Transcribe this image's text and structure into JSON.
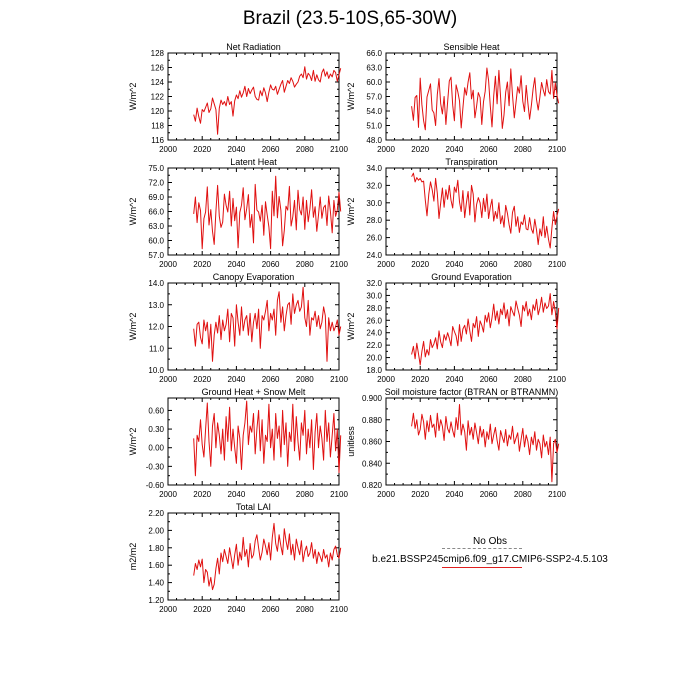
{
  "figure": {
    "title": "Brazil (23.5-10S,65-30W)",
    "line_color": "#e01010",
    "legend": {
      "obs_label": "No Obs",
      "case_label": "b.e21.BSSP245cmip6.f09_g17.CMIP6-SSP2-4.5.103",
      "obs_color": "#8a8a8a",
      "case_color": "#e02020"
    }
  },
  "chart_data": [
    {
      "type": "line",
      "title": "Net Radiation",
      "xlabel": "",
      "ylabel": "W/m^2",
      "xlim": [
        2000,
        2100
      ],
      "ylim": [
        116,
        128
      ],
      "x_ticks": [
        2000,
        2020,
        2040,
        2060,
        2080,
        2100
      ],
      "x_tick_labels": [
        "2000",
        "2020",
        "2040",
        "2060",
        "2080",
        "2100"
      ],
      "y_ticks": [
        116,
        118,
        120,
        122,
        124,
        126,
        128
      ],
      "y_tick_labels": [
        "116",
        "118",
        "120",
        "122",
        "124",
        "126",
        "128"
      ],
      "x_start": 2015,
      "values": [
        119.5,
        118.6,
        120.4,
        119.2,
        118.3,
        120.2,
        119.9,
        120.5,
        121.1,
        119.8,
        120.3,
        121.8,
        121.0,
        120.2,
        116.8,
        120.4,
        121.5,
        120.9,
        121.3,
        120.7,
        122.0,
        120.9,
        121.3,
        119.3,
        121.4,
        122.2,
        121.7,
        122.8,
        121.9,
        122.5,
        123.4,
        122.0,
        123.1,
        122.4,
        122.9,
        123.3,
        122.0,
        121.6,
        121.5,
        122.8,
        122.1,
        123.2,
        122.5,
        121.3,
        122.6,
        123.6,
        123.0,
        122.9,
        123.4,
        122.3,
        123.0,
        123.7,
        124.2,
        122.6,
        123.4,
        124.2,
        123.8,
        124.6,
        124.1,
        123.3,
        123.7,
        124.0,
        124.8,
        125.1,
        124.6,
        126.1,
        124.4,
        125.2,
        124.9,
        124.2,
        125.6,
        124.1,
        125.0,
        124.3,
        124.0,
        125.3,
        125.8,
        124.8,
        125.4,
        124.5,
        125.1,
        124.7,
        125.6,
        125.3,
        124.1,
        125.0,
        125.9
      ]
    },
    {
      "type": "line",
      "title": "Sensible Heat",
      "xlabel": "",
      "ylabel": "W/m^2",
      "xlim": [
        2000,
        2100
      ],
      "ylim": [
        48,
        66
      ],
      "x_ticks": [
        2000,
        2020,
        2040,
        2060,
        2080,
        2100
      ],
      "x_tick_labels": [
        "2000",
        "2020",
        "2040",
        "2060",
        "2080",
        "2100"
      ],
      "y_ticks": [
        48,
        51,
        54,
        57,
        60,
        63,
        66
      ],
      "y_tick_labels": [
        "48.0",
        "51.0",
        "54.0",
        "57.0",
        "60.0",
        "63.0",
        "66.0"
      ],
      "x_start": 2015,
      "values": [
        55.0,
        52.1,
        56.8,
        57.2,
        50.6,
        60.8,
        55.3,
        52.0,
        50.1,
        56.9,
        58.3,
        59.6,
        54.2,
        53.6,
        51.0,
        57.4,
        60.7,
        55.5,
        53.4,
        57.0,
        51.2,
        55.8,
        60.2,
        61.0,
        55.2,
        52.0,
        59.4,
        58.0,
        56.1,
        50.5,
        54.6,
        58.8,
        57.3,
        60.0,
        61.9,
        56.5,
        58.3,
        52.6,
        55.0,
        57.8,
        56.8,
        51.2,
        55.9,
        58.1,
        62.9,
        60.3,
        55.0,
        50.7,
        57.1,
        61.2,
        55.5,
        62.4,
        56.8,
        50.4,
        53.2,
        57.9,
        60.0,
        55.1,
        62.7,
        57.3,
        52.6,
        55.8,
        59.0,
        57.7,
        61.3,
        56.0,
        53.9,
        59.3,
        55.6,
        52.3,
        55.2,
        58.6,
        60.9,
        56.4,
        54.2,
        56.9,
        59.9,
        58.3,
        57.1,
        60.5,
        58.0,
        57.5,
        62.4,
        56.6,
        59.8,
        57.2,
        55.6
      ]
    },
    {
      "type": "line",
      "title": "Latent Heat",
      "xlabel": "",
      "ylabel": "W/m^2",
      "xlim": [
        2000,
        2100
      ],
      "ylim": [
        57,
        75
      ],
      "x_ticks": [
        2000,
        2020,
        2040,
        2060,
        2080,
        2100
      ],
      "x_tick_labels": [
        "2000",
        "2020",
        "2040",
        "2060",
        "2080",
        "2100"
      ],
      "y_ticks": [
        57,
        60,
        63,
        66,
        69,
        72,
        75
      ],
      "y_tick_labels": [
        "57.0",
        "60.0",
        "63.0",
        "66.0",
        "69.0",
        "72.0",
        "75.0"
      ],
      "x_start": 2015,
      "values": [
        65.5,
        69.0,
        63.7,
        67.8,
        66.2,
        58.3,
        64.5,
        65.9,
        71.1,
        63.2,
        66.4,
        61.9,
        59.2,
        66.0,
        71.4,
        65.0,
        62.7,
        63.8,
        69.6,
        67.3,
        65.9,
        70.2,
        63.0,
        68.7,
        64.1,
        66.9,
        58.5,
        65.8,
        67.3,
        70.9,
        64.3,
        66.6,
        69.5,
        62.7,
        65.4,
        59.5,
        71.6,
        66.3,
        65.9,
        64.0,
        67.3,
        61.1,
        68.0,
        65.3,
        62.8,
        58.3,
        70.2,
        65.1,
        73.3,
        64.7,
        69.1,
        66.2,
        58.9,
        62.1,
        67.1,
        66.3,
        71.2,
        63.0,
        64.9,
        68.3,
        62.2,
        70.4,
        66.4,
        65.3,
        69.0,
        62.3,
        68.3,
        63.9,
        66.5,
        70.5,
        64.8,
        67.0,
        61.9,
        65.3,
        69.0,
        64.6,
        66.8,
        67.3,
        63.1,
        69.2,
        66.0,
        61.6,
        68.3,
        65.0,
        66.3,
        70.0,
        66.0
      ]
    },
    {
      "type": "line",
      "title": "Transpiration",
      "xlabel": "",
      "ylabel": "W/m^2",
      "xlim": [
        2000,
        2100
      ],
      "ylim": [
        24,
        34
      ],
      "x_ticks": [
        2000,
        2020,
        2040,
        2060,
        2080,
        2100
      ],
      "x_tick_labels": [
        "2000",
        "2020",
        "2040",
        "2060",
        "2080",
        "2100"
      ],
      "y_ticks": [
        24,
        26,
        28,
        30,
        32,
        34
      ],
      "y_tick_labels": [
        "24.0",
        "26.0",
        "28.0",
        "30.0",
        "32.0",
        "34.0"
      ],
      "x_start": 2015,
      "values": [
        33.0,
        33.4,
        32.4,
        32.9,
        32.6,
        32.8,
        32.4,
        32.5,
        30.3,
        28.5,
        31.0,
        32.4,
        31.5,
        30.2,
        32.8,
        31.1,
        28.2,
        30.0,
        31.7,
        29.5,
        31.5,
        30.4,
        32.0,
        30.3,
        29.4,
        31.8,
        31.2,
        32.6,
        30.1,
        29.0,
        31.4,
        28.3,
        30.0,
        31.3,
        28.6,
        32.0,
        31.0,
        27.8,
        29.8,
        30.6,
        30.0,
        28.3,
        30.5,
        29.0,
        31.0,
        28.2,
        29.5,
        30.4,
        27.9,
        29.0,
        28.2,
        30.0,
        27.6,
        28.5,
        27.2,
        29.7,
        28.8,
        27.5,
        26.5,
        28.9,
        29.6,
        27.3,
        28.4,
        26.6,
        27.8,
        27.5,
        28.6,
        27.0,
        26.9,
        28.3,
        27.0,
        26.5,
        28.1,
        26.9,
        25.2,
        27.0,
        26.2,
        28.4,
        26.0,
        27.3,
        25.8,
        24.8,
        27.1,
        29.0,
        27.5,
        28.5,
        29.3
      ]
    },
    {
      "type": "line",
      "title": "Canopy Evaporation",
      "xlabel": "",
      "ylabel": "W/m^2",
      "xlim": [
        2000,
        2100
      ],
      "ylim": [
        10,
        14
      ],
      "x_ticks": [
        2000,
        2020,
        2040,
        2060,
        2080,
        2100
      ],
      "x_tick_labels": [
        "2000",
        "2020",
        "2040",
        "2060",
        "2080",
        "2100"
      ],
      "y_ticks": [
        10,
        11,
        12,
        13,
        14
      ],
      "y_tick_labels": [
        "10.0",
        "11.0",
        "12.0",
        "13.0",
        "14.0"
      ],
      "x_start": 2015,
      "values": [
        11.9,
        11.1,
        12.1,
        12.2,
        11.5,
        11.2,
        12.3,
        11.8,
        12.2,
        11.0,
        12.1,
        10.4,
        11.6,
        12.2,
        11.7,
        12.5,
        11.4,
        12.3,
        11.8,
        12.1,
        12.8,
        11.3,
        12.6,
        12.4,
        11.1,
        13.0,
        12.2,
        11.6,
        12.9,
        11.8,
        12.3,
        12.5,
        11.6,
        12.6,
        11.3,
        12.2,
        12.6,
        11.9,
        12.8,
        11.0,
        12.5,
        12.3,
        12.7,
        13.2,
        11.8,
        12.6,
        12.3,
        12.8,
        11.6,
        13.2,
        13.6,
        12.2,
        12.9,
        11.8,
        12.5,
        13.0,
        13.1,
        12.1,
        13.5,
        12.6,
        13.0,
        13.2,
        12.7,
        12.9,
        13.8,
        12.4,
        12.0,
        13.2,
        11.6,
        12.4,
        12.3,
        12.7,
        12.0,
        12.5,
        11.9,
        12.2,
        12.9,
        12.5,
        10.4,
        12.4,
        11.8,
        12.2,
        11.8,
        12.0,
        12.3,
        11.6,
        12.0
      ]
    },
    {
      "type": "line",
      "title": "Ground Evaporation",
      "xlabel": "",
      "ylabel": "W/m^2",
      "xlim": [
        2000,
        2100
      ],
      "ylim": [
        18,
        32
      ],
      "x_ticks": [
        2000,
        2020,
        2040,
        2060,
        2080,
        2100
      ],
      "x_tick_labels": [
        "2000",
        "2020",
        "2040",
        "2060",
        "2080",
        "2100"
      ],
      "y_ticks": [
        18,
        20,
        22,
        24,
        26,
        28,
        30,
        32
      ],
      "y_tick_labels": [
        "18.0",
        "20.0",
        "22.0",
        "24.0",
        "26.0",
        "28.0",
        "30.0",
        "32.0"
      ],
      "x_start": 2015,
      "values": [
        20.5,
        21.8,
        19.8,
        22.3,
        20.6,
        18.8,
        21.0,
        22.6,
        20.1,
        21.3,
        20.4,
        22.9,
        21.6,
        22.2,
        23.2,
        21.4,
        24.3,
        22.5,
        21.6,
        23.7,
        22.8,
        24.0,
        23.1,
        21.9,
        25.0,
        24.2,
        23.5,
        21.9,
        25.3,
        22.6,
        24.6,
        25.2,
        23.8,
        26.2,
        24.3,
        22.6,
        25.5,
        24.8,
        26.6,
        23.4,
        25.9,
        25.2,
        24.1,
        26.8,
        25.7,
        27.2,
        24.8,
        26.4,
        28.6,
        26.0,
        27.5,
        25.4,
        27.8,
        26.9,
        28.8,
        26.3,
        27.7,
        25.1,
        28.2,
        27.4,
        26.7,
        29.1,
        27.9,
        26.8,
        25.0,
        28.4,
        27.5,
        29.0,
        26.7,
        27.8,
        26.1,
        28.5,
        27.6,
        29.4,
        26.9,
        28.0,
        29.7,
        27.3,
        28.8,
        27.9,
        28.3,
        30.3,
        26.9,
        29.0,
        27.4,
        24.6,
        28.0
      ]
    },
    {
      "type": "line",
      "title": "Ground Heat + Snow Melt",
      "xlabel": "",
      "ylabel": "W/m^2",
      "xlim": [
        2000,
        2100
      ],
      "ylim": [
        -0.6,
        0.8
      ],
      "x_ticks": [
        2000,
        2020,
        2040,
        2060,
        2080,
        2100
      ],
      "x_tick_labels": [
        "2000",
        "2020",
        "2040",
        "2060",
        "2080",
        "2100"
      ],
      "y_ticks": [
        -0.6,
        -0.3,
        0.0,
        0.3,
        0.6
      ],
      "y_tick_labels": [
        "-0.60",
        "-0.30",
        "0.00",
        "0.30",
        "0.60"
      ],
      "x_start": 2015,
      "values": [
        0.15,
        -0.45,
        0.2,
        0.1,
        0.45,
        0.05,
        -0.15,
        0.3,
        0.72,
        0.1,
        -0.3,
        0.35,
        0.55,
        0.0,
        0.4,
        0.2,
        -0.1,
        0.3,
        -0.2,
        0.5,
        0.1,
        0.65,
        -0.05,
        0.3,
        0.0,
        -0.25,
        0.35,
        0.15,
        -0.35,
        0.2,
        0.4,
        0.75,
        0.05,
        0.35,
        0.25,
        0.55,
        -0.1,
        0.3,
        0.6,
        -0.05,
        0.45,
        -0.25,
        0.2,
        0.1,
        0.7,
        0.0,
        0.3,
        -0.2,
        0.55,
        0.15,
        0.35,
        -0.15,
        0.6,
        0.05,
        0.4,
        -0.3,
        0.25,
        0.1,
        0.7,
        -0.05,
        0.5,
        0.1,
        -0.2,
        0.4,
        0.2,
        0.6,
        -0.1,
        0.3,
        0.0,
        0.45,
        -0.35,
        0.25,
        0.55,
        0.0,
        0.35,
        0.15,
        -0.2,
        0.6,
        0.1,
        0.4,
        -0.15,
        0.2,
        0.55,
        -0.05,
        0.3,
        -0.4,
        0.2
      ]
    },
    {
      "type": "line",
      "title": "Soil moisture factor (BTRAN or BTRANMN)",
      "xlabel": "",
      "ylabel": "unitless",
      "xlim": [
        2000,
        2100
      ],
      "ylim": [
        0.82,
        0.9
      ],
      "x_ticks": [
        2000,
        2020,
        2040,
        2060,
        2080,
        2100
      ],
      "x_tick_labels": [
        "2000",
        "2020",
        "2040",
        "2060",
        "2080",
        "2100"
      ],
      "y_ticks": [
        0.82,
        0.84,
        0.86,
        0.88,
        0.9
      ],
      "y_tick_labels": [
        "0.820",
        "0.840",
        "0.860",
        "0.880",
        "0.900"
      ],
      "x_start": 2015,
      "values": [
        0.874,
        0.886,
        0.872,
        0.88,
        0.866,
        0.871,
        0.885,
        0.878,
        0.862,
        0.879,
        0.869,
        0.884,
        0.873,
        0.876,
        0.864,
        0.886,
        0.87,
        0.88,
        0.874,
        0.861,
        0.883,
        0.872,
        0.868,
        0.878,
        0.87,
        0.864,
        0.882,
        0.871,
        0.894,
        0.866,
        0.876,
        0.869,
        0.852,
        0.879,
        0.866,
        0.873,
        0.862,
        0.877,
        0.868,
        0.858,
        0.874,
        0.864,
        0.871,
        0.855,
        0.869,
        0.862,
        0.876,
        0.858,
        0.866,
        0.873,
        0.861,
        0.852,
        0.87,
        0.864,
        0.859,
        0.871,
        0.856,
        0.866,
        0.862,
        0.874,
        0.858,
        0.863,
        0.868,
        0.851,
        0.862,
        0.872,
        0.855,
        0.866,
        0.86,
        0.848,
        0.864,
        0.857,
        0.869,
        0.852,
        0.862,
        0.858,
        0.845,
        0.866,
        0.855,
        0.86,
        0.848,
        0.864,
        0.823,
        0.858,
        0.862,
        0.85,
        0.858
      ]
    },
    {
      "type": "line",
      "title": "Total LAI",
      "xlabel": "",
      "ylabel": "m2/m2",
      "xlim": [
        2000,
        2100
      ],
      "ylim": [
        1.2,
        2.2
      ],
      "x_ticks": [
        2000,
        2020,
        2040,
        2060,
        2080,
        2100
      ],
      "x_tick_labels": [
        "2000",
        "2020",
        "2040",
        "2060",
        "2080",
        "2100"
      ],
      "y_ticks": [
        1.2,
        1.4,
        1.6,
        1.8,
        2.0,
        2.2
      ],
      "y_tick_labels": [
        "1.20",
        "1.40",
        "1.60",
        "1.80",
        "2.00",
        "2.20"
      ],
      "x_start": 2015,
      "values": [
        1.48,
        1.62,
        1.55,
        1.66,
        1.58,
        1.67,
        1.4,
        1.55,
        1.52,
        1.36,
        1.46,
        1.32,
        1.38,
        1.56,
        1.68,
        1.5,
        1.74,
        1.64,
        1.78,
        1.7,
        1.62,
        1.8,
        1.68,
        1.56,
        1.72,
        1.84,
        1.6,
        1.75,
        1.66,
        1.92,
        1.7,
        1.78,
        1.58,
        1.85,
        1.68,
        1.72,
        1.88,
        1.95,
        1.8,
        1.66,
        1.75,
        1.9,
        1.82,
        1.72,
        1.86,
        1.66,
        1.92,
        2.08,
        1.85,
        1.76,
        1.95,
        1.82,
        1.72,
        2.02,
        1.88,
        1.78,
        1.96,
        1.72,
        1.84,
        1.66,
        1.9,
        1.8,
        1.72,
        1.88,
        1.64,
        1.76,
        1.82,
        1.7,
        1.74,
        1.86,
        1.68,
        1.78,
        1.62,
        1.75,
        1.7,
        1.64,
        1.78,
        1.68,
        1.72,
        1.58,
        1.74,
        1.66,
        1.78,
        1.82,
        1.72,
        1.68,
        1.8
      ]
    }
  ]
}
